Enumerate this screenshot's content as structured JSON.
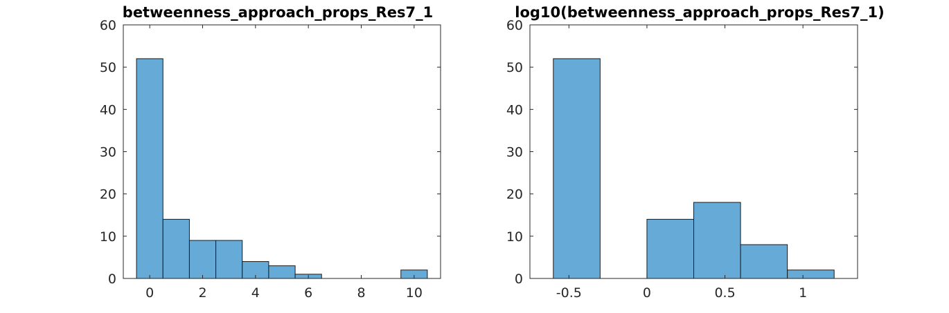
{
  "chart_data": [
    {
      "type": "bar",
      "title": "betweenness_approach_props_Res7_1",
      "xlabel": "",
      "ylabel": "",
      "bin_edges": [
        -0.5,
        0.5,
        1.5,
        2.5,
        3.5,
        4.5,
        5.5,
        6.5,
        7.5,
        8.5,
        9.5,
        10.5
      ],
      "values": [
        52,
        14,
        9,
        9,
        4,
        3,
        1,
        0,
        0,
        0,
        2
      ],
      "xlim": [
        -1,
        11
      ],
      "ylim": [
        0,
        60
      ],
      "xticks": [
        0,
        2,
        4,
        6,
        8,
        10
      ],
      "xtick_labels": [
        "0",
        "2",
        "4",
        "6",
        "8",
        "10"
      ],
      "yticks": [
        0,
        10,
        20,
        30,
        40,
        50,
        60
      ],
      "ytick_labels": [
        "0",
        "10",
        "20",
        "30",
        "40",
        "50",
        "60"
      ],
      "grid": false,
      "bar_color": "#66aad8"
    },
    {
      "type": "bar",
      "title": "log10(betweenness_approach_props_Res7_1)",
      "xlabel": "",
      "ylabel": "",
      "bin_edges": [
        -0.6,
        -0.3,
        0.0,
        0.3,
        0.6,
        0.9,
        1.2
      ],
      "values": [
        52,
        0,
        14,
        18,
        8,
        2
      ],
      "xlim": [
        -0.75,
        1.35
      ],
      "ylim": [
        0,
        60
      ],
      "xticks": [
        -0.5,
        0,
        0.5,
        1
      ],
      "xtick_labels": [
        "-0.5",
        "0",
        "0.5",
        "1"
      ],
      "yticks": [
        0,
        10,
        20,
        30,
        40,
        50,
        60
      ],
      "ytick_labels": [
        "0",
        "10",
        "20",
        "30",
        "40",
        "50",
        "60"
      ],
      "grid": false,
      "bar_color": "#66aad8"
    }
  ]
}
